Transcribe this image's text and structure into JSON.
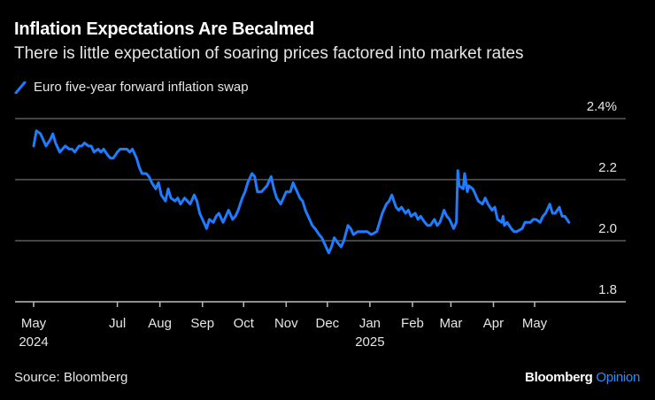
{
  "header": {
    "title": "Inflation Expectations Are Becalmed",
    "subtitle": "There is little expectation of soaring prices factored into market rates"
  },
  "legend": {
    "label": "Euro five-year forward inflation swap",
    "color": "#1f7cff"
  },
  "footer": {
    "source": "Source: Bloomberg",
    "brand": "Bloomberg",
    "brand_suffix": "Opinion",
    "brand_suffix_color": "#2a8cff"
  },
  "chart_data": {
    "type": "line",
    "title": "Inflation Expectations Are Becalmed",
    "subtitle": "There is little expectation of soaring prices factored into market rates",
    "xlabel": "",
    "ylabel": "",
    "ylim": [
      1.8,
      2.4
    ],
    "yticks": [
      2.4,
      2.2,
      2.0,
      1.8
    ],
    "ytick_labels": [
      "2.4%",
      "2.2",
      "2.0",
      "1.8"
    ],
    "grid": true,
    "legend_position": "top-left",
    "xlim": [
      "2024-04-20",
      "2025-06-30"
    ],
    "xticks": [
      {
        "date": "2024-05-01",
        "label": "May",
        "sub": "2024"
      },
      {
        "date": "2024-07-01",
        "label": "Jul",
        "sub": ""
      },
      {
        "date": "2024-08-01",
        "label": "Aug",
        "sub": ""
      },
      {
        "date": "2024-09-01",
        "label": "Sep",
        "sub": ""
      },
      {
        "date": "2024-10-01",
        "label": "Oct",
        "sub": ""
      },
      {
        "date": "2024-11-01",
        "label": "Nov",
        "sub": ""
      },
      {
        "date": "2024-12-01",
        "label": "Dec",
        "sub": ""
      },
      {
        "date": "2025-01-01",
        "label": "Jan",
        "sub": "2025"
      },
      {
        "date": "2025-02-01",
        "label": "Feb",
        "sub": ""
      },
      {
        "date": "2025-03-01",
        "label": "Mar",
        "sub": ""
      },
      {
        "date": "2025-04-01",
        "label": "Apr",
        "sub": ""
      },
      {
        "date": "2025-05-01",
        "label": "May",
        "sub": ""
      }
    ],
    "series": [
      {
        "name": "Euro five-year forward inflation swap",
        "color": "#1f7cff",
        "points": [
          [
            "2024-05-01",
            2.31
          ],
          [
            "2024-05-03",
            2.36
          ],
          [
            "2024-05-06",
            2.35
          ],
          [
            "2024-05-08",
            2.33
          ],
          [
            "2024-05-10",
            2.31
          ],
          [
            "2024-05-13",
            2.33
          ],
          [
            "2024-05-15",
            2.35
          ],
          [
            "2024-05-17",
            2.32
          ],
          [
            "2024-05-20",
            2.29
          ],
          [
            "2024-05-22",
            2.3
          ],
          [
            "2024-05-24",
            2.31
          ],
          [
            "2024-05-27",
            2.3
          ],
          [
            "2024-05-29",
            2.3
          ],
          [
            "2024-05-31",
            2.29
          ],
          [
            "2024-06-03",
            2.31
          ],
          [
            "2024-06-05",
            2.31
          ],
          [
            "2024-06-07",
            2.32
          ],
          [
            "2024-06-10",
            2.31
          ],
          [
            "2024-06-12",
            2.31
          ],
          [
            "2024-06-14",
            2.29
          ],
          [
            "2024-06-17",
            2.3
          ],
          [
            "2024-06-19",
            2.29
          ],
          [
            "2024-06-21",
            2.3
          ],
          [
            "2024-06-24",
            2.28
          ],
          [
            "2024-06-26",
            2.27
          ],
          [
            "2024-06-28",
            2.27
          ],
          [
            "2024-07-01",
            2.29
          ],
          [
            "2024-07-03",
            2.3
          ],
          [
            "2024-07-05",
            2.3
          ],
          [
            "2024-07-08",
            2.3
          ],
          [
            "2024-07-10",
            2.29
          ],
          [
            "2024-07-12",
            2.3
          ],
          [
            "2024-07-15",
            2.27
          ],
          [
            "2024-07-17",
            2.24
          ],
          [
            "2024-07-19",
            2.22
          ],
          [
            "2024-07-22",
            2.22
          ],
          [
            "2024-07-24",
            2.21
          ],
          [
            "2024-07-26",
            2.19
          ],
          [
            "2024-07-29",
            2.17
          ],
          [
            "2024-07-31",
            2.19
          ],
          [
            "2024-08-02",
            2.15
          ],
          [
            "2024-08-05",
            2.13
          ],
          [
            "2024-08-07",
            2.17
          ],
          [
            "2024-08-09",
            2.14
          ],
          [
            "2024-08-12",
            2.13
          ],
          [
            "2024-08-14",
            2.14
          ],
          [
            "2024-08-16",
            2.12
          ],
          [
            "2024-08-19",
            2.14
          ],
          [
            "2024-08-21",
            2.13
          ],
          [
            "2024-08-23",
            2.12
          ],
          [
            "2024-08-26",
            2.15
          ],
          [
            "2024-08-28",
            2.13
          ],
          [
            "2024-08-30",
            2.09
          ],
          [
            "2024-09-02",
            2.06
          ],
          [
            "2024-09-04",
            2.04
          ],
          [
            "2024-09-06",
            2.07
          ],
          [
            "2024-09-09",
            2.06
          ],
          [
            "2024-09-11",
            2.08
          ],
          [
            "2024-09-13",
            2.09
          ],
          [
            "2024-09-16",
            2.06
          ],
          [
            "2024-09-18",
            2.08
          ],
          [
            "2024-09-20",
            2.1
          ],
          [
            "2024-09-23",
            2.07
          ],
          [
            "2024-09-25",
            2.08
          ],
          [
            "2024-09-27",
            2.1
          ],
          [
            "2024-09-30",
            2.14
          ],
          [
            "2024-10-02",
            2.16
          ],
          [
            "2024-10-04",
            2.19
          ],
          [
            "2024-10-07",
            2.22
          ],
          [
            "2024-10-09",
            2.21
          ],
          [
            "2024-10-11",
            2.16
          ],
          [
            "2024-10-14",
            2.16
          ],
          [
            "2024-10-16",
            2.17
          ],
          [
            "2024-10-18",
            2.18
          ],
          [
            "2024-10-21",
            2.21
          ],
          [
            "2024-10-23",
            2.17
          ],
          [
            "2024-10-25",
            2.14
          ],
          [
            "2024-10-28",
            2.12
          ],
          [
            "2024-10-30",
            2.14
          ],
          [
            "2024-11-01",
            2.16
          ],
          [
            "2024-11-04",
            2.16
          ],
          [
            "2024-11-06",
            2.19
          ],
          [
            "2024-11-08",
            2.17
          ],
          [
            "2024-11-11",
            2.14
          ],
          [
            "2024-11-13",
            2.13
          ],
          [
            "2024-11-15",
            2.1
          ],
          [
            "2024-11-18",
            2.07
          ],
          [
            "2024-11-20",
            2.05
          ],
          [
            "2024-11-22",
            2.04
          ],
          [
            "2024-11-25",
            2.02
          ],
          [
            "2024-11-27",
            2.01
          ],
          [
            "2024-11-29",
            1.99
          ],
          [
            "2024-12-02",
            1.96
          ],
          [
            "2024-12-04",
            1.98
          ],
          [
            "2024-12-06",
            2.01
          ],
          [
            "2024-12-09",
            1.99
          ],
          [
            "2024-12-11",
            1.98
          ],
          [
            "2024-12-13",
            2.0
          ],
          [
            "2024-12-16",
            2.05
          ],
          [
            "2024-12-18",
            2.04
          ],
          [
            "2024-12-20",
            2.02
          ],
          [
            "2024-12-23",
            2.03
          ],
          [
            "2024-12-27",
            2.03
          ],
          [
            "2024-12-30",
            2.03
          ],
          [
            "2025-01-02",
            2.02
          ],
          [
            "2025-01-06",
            2.03
          ],
          [
            "2025-01-08",
            2.06
          ],
          [
            "2025-01-10",
            2.09
          ],
          [
            "2025-01-13",
            2.12
          ],
          [
            "2025-01-15",
            2.13
          ],
          [
            "2025-01-17",
            2.15
          ],
          [
            "2025-01-20",
            2.11
          ],
          [
            "2025-01-22",
            2.1
          ],
          [
            "2025-01-24",
            2.11
          ],
          [
            "2025-01-27",
            2.09
          ],
          [
            "2025-01-29",
            2.1
          ],
          [
            "2025-01-31",
            2.08
          ],
          [
            "2025-02-03",
            2.09
          ],
          [
            "2025-02-05",
            2.07
          ],
          [
            "2025-02-07",
            2.08
          ],
          [
            "2025-02-10",
            2.06
          ],
          [
            "2025-02-12",
            2.05
          ],
          [
            "2025-02-14",
            2.05
          ],
          [
            "2025-02-17",
            2.07
          ],
          [
            "2025-02-19",
            2.05
          ],
          [
            "2025-02-21",
            2.06
          ],
          [
            "2025-02-24",
            2.1
          ],
          [
            "2025-02-26",
            2.08
          ],
          [
            "2025-02-28",
            2.07
          ],
          [
            "2025-03-03",
            2.04
          ],
          [
            "2025-03-05",
            2.06
          ],
          [
            "2025-03-06",
            2.23
          ],
          [
            "2025-03-07",
            2.18
          ],
          [
            "2025-03-10",
            2.17
          ],
          [
            "2025-03-11",
            2.22
          ],
          [
            "2025-03-13",
            2.16
          ],
          [
            "2025-03-14",
            2.18
          ],
          [
            "2025-03-17",
            2.17
          ],
          [
            "2025-03-19",
            2.15
          ],
          [
            "2025-03-21",
            2.13
          ],
          [
            "2025-03-24",
            2.12
          ],
          [
            "2025-03-26",
            2.14
          ],
          [
            "2025-03-28",
            2.12
          ],
          [
            "2025-03-31",
            2.1
          ],
          [
            "2025-04-02",
            2.11
          ],
          [
            "2025-04-04",
            2.07
          ],
          [
            "2025-04-07",
            2.06
          ],
          [
            "2025-04-08",
            2.08
          ],
          [
            "2025-04-09",
            2.05
          ],
          [
            "2025-04-11",
            2.06
          ],
          [
            "2025-04-14",
            2.04
          ],
          [
            "2025-04-16",
            2.03
          ],
          [
            "2025-04-18",
            2.03
          ],
          [
            "2025-04-22",
            2.04
          ],
          [
            "2025-04-24",
            2.06
          ],
          [
            "2025-04-28",
            2.06
          ],
          [
            "2025-04-30",
            2.07
          ],
          [
            "2025-05-02",
            2.07
          ],
          [
            "2025-05-05",
            2.06
          ],
          [
            "2025-05-07",
            2.08
          ],
          [
            "2025-05-09",
            2.09
          ],
          [
            "2025-05-12",
            2.12
          ],
          [
            "2025-05-14",
            2.09
          ],
          [
            "2025-05-16",
            2.09
          ],
          [
            "2025-05-19",
            2.11
          ],
          [
            "2025-05-21",
            2.08
          ],
          [
            "2025-05-23",
            2.08
          ],
          [
            "2025-05-26",
            2.06
          ]
        ]
      }
    ]
  }
}
